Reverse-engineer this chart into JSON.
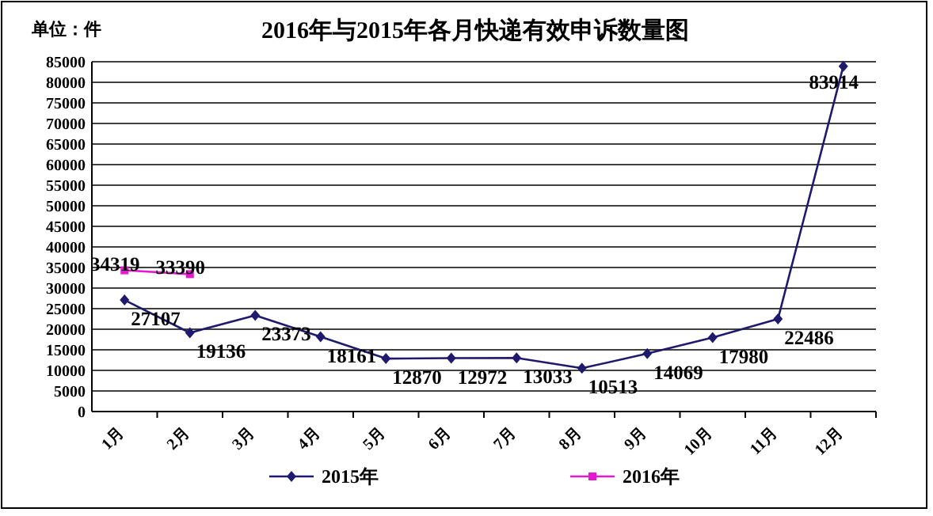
{
  "chart_data": {
    "type": "line",
    "title": "2016年与2015年各月快递有效申诉数量图",
    "annotations": [
      "单位：件"
    ],
    "categories": [
      "1月",
      "2月",
      "3月",
      "4月",
      "5月",
      "6月",
      "7月",
      "8月",
      "9月",
      "10月",
      "11月",
      "12月"
    ],
    "series": [
      {
        "name": "2015年",
        "color": "#1f1a6e",
        "marker": "diamond",
        "values": [
          27107,
          19136,
          23373,
          18161,
          12870,
          12972,
          13033,
          10513,
          14069,
          17980,
          22486,
          83914
        ]
      },
      {
        "name": "2016年",
        "color": "#e619d0",
        "marker": "square",
        "values": [
          34319,
          33390,
          null,
          null,
          null,
          null,
          null,
          null,
          null,
          null,
          null,
          null
        ]
      }
    ],
    "ylim": [
      0,
      85000
    ],
    "yticks": [
      0,
      5000,
      10000,
      15000,
      20000,
      25000,
      30000,
      35000,
      40000,
      45000,
      50000,
      55000,
      60000,
      65000,
      70000,
      75000,
      80000,
      85000
    ],
    "grid": "y",
    "legend": "bottom",
    "data_labels": true
  }
}
